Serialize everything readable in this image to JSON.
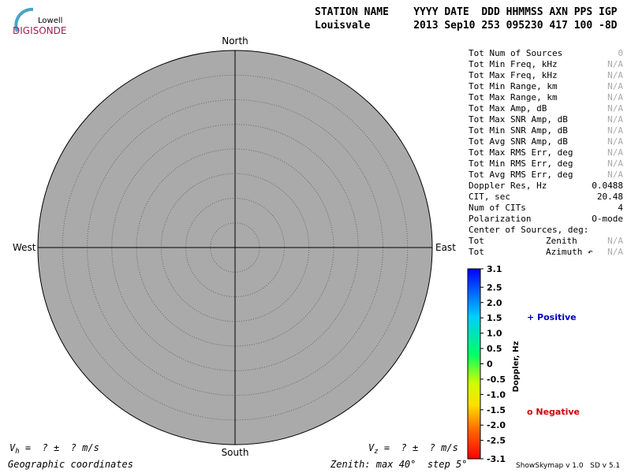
{
  "logo": {
    "top": "Lowell",
    "bottom": "DIGISONDE"
  },
  "header": {
    "labels": "STATION NAME    YYYY DATE  DDD HHMMSS AXN PPS IGP",
    "values": "Louisvale       2013 Sep10 253 095230 417 100 -8D"
  },
  "skymap": {
    "north": "North",
    "south": "South",
    "west": "West",
    "east": "East"
  },
  "stats": [
    {
      "label": "Tot Num of Sources",
      "value": "0"
    },
    {
      "label": "Tot Min Freq, kHz",
      "value": "N/A"
    },
    {
      "label": "Tot Max Freq, kHz",
      "value": "N/A"
    },
    {
      "label": "Tot Min Range, km",
      "value": "N/A"
    },
    {
      "label": "Tot Max Range, km",
      "value": "N/A"
    },
    {
      "label": "Tot Max Amp, dB",
      "value": "N/A"
    },
    {
      "label": "Tot Max SNR Amp, dB",
      "value": "N/A"
    },
    {
      "label": "Tot Min SNR Amp, dB",
      "value": "N/A"
    },
    {
      "label": "Tot Avg SNR Amp, dB",
      "value": "N/A"
    },
    {
      "label": "Tot Max RMS Err, deg",
      "value": "N/A"
    },
    {
      "label": "Tot Min RMS Err, deg",
      "value": "N/A"
    },
    {
      "label": "Tot Avg RMS Err, deg",
      "value": "N/A"
    },
    {
      "label": "Doppler Res, Hz",
      "value": "0.0488"
    },
    {
      "label": "CIT, sec",
      "value": "20.48"
    },
    {
      "label": "Num of CITs",
      "value": "4"
    },
    {
      "label": "Polarization",
      "value": "O-mode"
    }
  ],
  "center_header": "Center of Sources, deg:",
  "center": [
    {
      "label": "Tot",
      "name": "Zenith",
      "value": "N/A"
    },
    {
      "label": "Tot",
      "name": "Azimuth ↶",
      "value": "N/A"
    }
  ],
  "colorbar": {
    "title": "Doppler, Hz",
    "ticks": [
      3.1,
      2.5,
      {
        "value": 2,
        "label": "2.0"
      },
      1.5,
      {
        "value": 1,
        "label": "1.0"
      },
      0.5,
      0,
      -0.5,
      {
        "value": -1,
        "label": "-1.0"
      },
      -1.5,
      {
        "value": -2,
        "label": "-2.0"
      },
      -2.5,
      -3.1
    ]
  },
  "legend": {
    "positive": "+ Positive",
    "negative": "o Negative"
  },
  "footer": {
    "vh": {
      "symbol": "V",
      "sub": "h",
      "text": " =  ? ±  ? m/s"
    },
    "vz": {
      "symbol": "V",
      "sub": "z",
      "text": " =  ? ±  ? m/s"
    },
    "coords": "Geographic coordinates",
    "zenith": "Zenith: max 40°  step 5°",
    "version": "ShowSkymap v 1.0   SD v 5.1"
  }
}
